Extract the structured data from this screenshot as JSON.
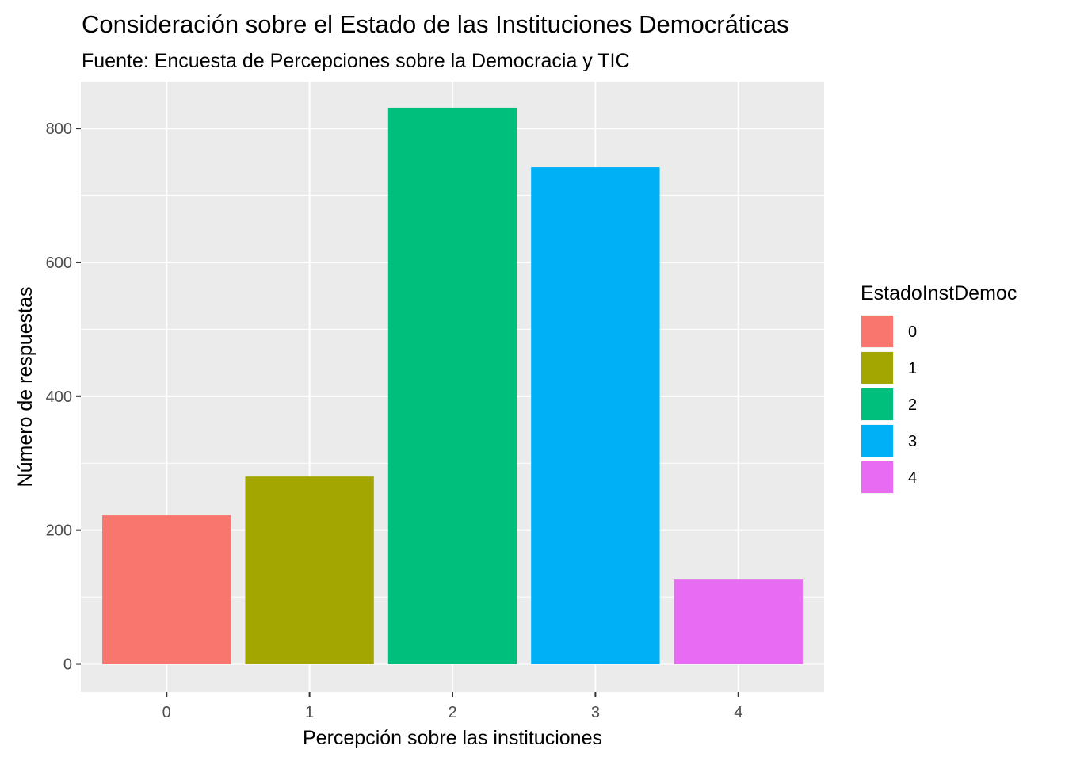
{
  "chart_data": {
    "type": "bar",
    "title": "Consideración sobre el Estado de las Instituciones Democráticas",
    "subtitle": "Fuente: Encuesta de Percepciones sobre la Democracia y TIC",
    "xlabel": "Percepción sobre las instituciones",
    "ylabel": "Número de respuestas",
    "categories": [
      "0",
      "1",
      "2",
      "3",
      "4"
    ],
    "values": [
      222,
      280,
      831,
      742,
      126
    ],
    "colors": [
      "#F8766D",
      "#A3A500",
      "#00BF7D",
      "#00B0F6",
      "#E76BF3"
    ],
    "ylim": [
      -42,
      870
    ],
    "yticks": [
      0,
      200,
      400,
      600,
      800
    ],
    "ytick_labels": [
      "0",
      "200",
      "400",
      "600",
      "800"
    ],
    "grid": true,
    "panel_background": "#EBEBEB",
    "legend": {
      "title": "EstadoInstDemoc",
      "placement": "right",
      "entries": [
        "0",
        "1",
        "2",
        "3",
        "4"
      ]
    }
  }
}
